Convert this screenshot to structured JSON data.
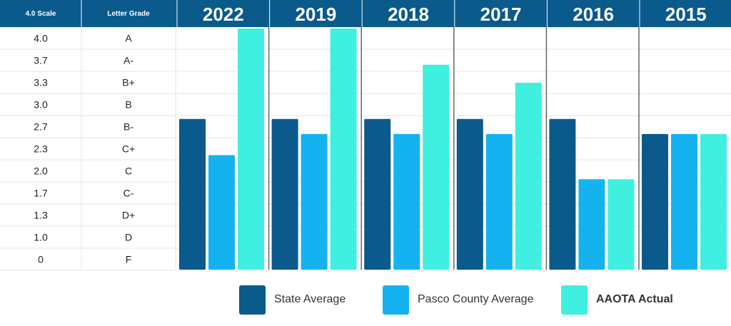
{
  "chart_data": {
    "type": "bar",
    "table_headers": {
      "scale": "4.0 Scale",
      "grade": "Letter Grade"
    },
    "scale_rows": [
      {
        "scale": "4.0",
        "grade": "A"
      },
      {
        "scale": "3.7",
        "grade": "A-"
      },
      {
        "scale": "3.3",
        "grade": "B+"
      },
      {
        "scale": "3.0",
        "grade": "B"
      },
      {
        "scale": "2.7",
        "grade": "B-"
      },
      {
        "scale": "2.3",
        "grade": "C+"
      },
      {
        "scale": "2.0",
        "grade": "C"
      },
      {
        "scale": "1.7",
        "grade": "C-"
      },
      {
        "scale": "1.3",
        "grade": "D+"
      },
      {
        "scale": "1.0",
        "grade": "D"
      },
      {
        "scale": "0",
        "grade": "F"
      }
    ],
    "categories": [
      "2022",
      "2019",
      "2018",
      "2017",
      "2016",
      "2015"
    ],
    "series": [
      {
        "name": "State Average",
        "color": "#0a5a8c",
        "values": [
          2.5,
          2.5,
          2.5,
          2.5,
          2.5,
          2.25
        ]
      },
      {
        "name": "Pasco County Average",
        "color": "#14b3f0",
        "values": [
          1.9,
          2.25,
          2.25,
          2.25,
          1.5,
          2.25
        ]
      },
      {
        "name": "AAOTA Actual",
        "color": "#3ff0e0",
        "values": [
          4.0,
          4.0,
          3.4,
          3.1,
          1.5,
          2.25
        ]
      }
    ],
    "grid": true,
    "legend_position": "bottom"
  },
  "colors": {
    "header_bg": "#0a5a8c",
    "header_text": "#ffffff",
    "gridline": "#e4e4e4",
    "separator": "#666666"
  }
}
